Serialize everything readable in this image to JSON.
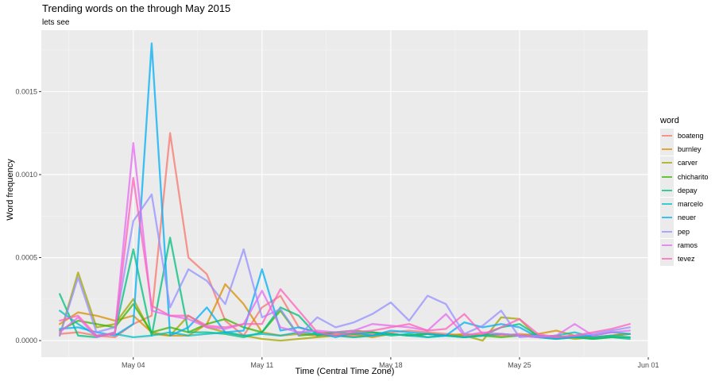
{
  "chart_data": {
    "type": "line",
    "title": "Trending words on the through May 2015",
    "subtitle": "lets see",
    "xlabel": "Time (Central Time Zone)",
    "ylabel": "Word frequency",
    "xlim": [
      "2015-04-29",
      "2015-06-01"
    ],
    "ylim": [
      -0.0001,
      0.00187
    ],
    "x_ticks": [
      {
        "date": "2015-05-04",
        "label": "May 04"
      },
      {
        "date": "2015-05-11",
        "label": "May 11"
      },
      {
        "date": "2015-05-18",
        "label": "May 18"
      },
      {
        "date": "2015-05-25",
        "label": "May 25"
      },
      {
        "date": "2015-06-01",
        "label": "Jun 01"
      }
    ],
    "y_ticks": [
      {
        "value": 0,
        "label": "0.0000"
      },
      {
        "value": 0.0005,
        "label": "0.0005"
      },
      {
        "value": 0.001,
        "label": "0.0010"
      },
      {
        "value": 0.0015,
        "label": "0.0015"
      }
    ],
    "grid": true,
    "legend": {
      "title": "word",
      "position": "right"
    },
    "x": [
      "2015-04-30",
      "2015-05-01",
      "2015-05-02",
      "2015-05-03",
      "2015-05-04",
      "2015-05-05",
      "2015-05-06",
      "2015-05-07",
      "2015-05-08",
      "2015-05-09",
      "2015-05-10",
      "2015-05-11",
      "2015-05-12",
      "2015-05-13",
      "2015-05-14",
      "2015-05-15",
      "2015-05-16",
      "2015-05-17",
      "2015-05-18",
      "2015-05-19",
      "2015-05-20",
      "2015-05-21",
      "2015-05-22",
      "2015-05-23",
      "2015-05-24",
      "2015-05-25",
      "2015-05-26",
      "2015-05-27",
      "2015-05-28",
      "2015-05-29",
      "2015-05-30",
      "2015-05-31"
    ],
    "series": [
      {
        "name": "boateng",
        "color": "#F8766D",
        "values": [
          4e-05,
          5e-05,
          3e-05,
          2e-05,
          0.0001,
          0.00015,
          0.00125,
          0.0005,
          0.0004,
          0.00012,
          3e-05,
          0.0002,
          0.00027,
          8e-05,
          5e-05,
          4e-05,
          3e-05,
          4e-05,
          5e-05,
          6e-05,
          5e-05,
          4e-05,
          3e-05,
          4e-05,
          3e-05,
          4e-05,
          3e-05,
          2e-05,
          3e-05,
          2e-05,
          3e-05,
          4e-05
        ]
      },
      {
        "name": "burnley",
        "color": "#D89000",
        "values": [
          0.0001,
          0.00017,
          0.00015,
          0.00012,
          0.00015,
          5e-05,
          3e-05,
          3e-05,
          0.0001,
          0.00034,
          0.00022,
          5e-05,
          3e-05,
          4e-05,
          3e-05,
          3e-05,
          4e-05,
          2e-05,
          4e-05,
          3e-05,
          4e-05,
          3e-05,
          4e-05,
          3e-05,
          4e-05,
          3e-05,
          4e-05,
          6e-05,
          3e-05,
          2e-05,
          3e-05,
          4e-05
        ]
      },
      {
        "name": "carver",
        "color": "#A3A500",
        "values": [
          3e-05,
          0.00041,
          8e-05,
          0.0001,
          0.00025,
          4e-05,
          3e-05,
          0.00015,
          8e-05,
          5e-05,
          3e-05,
          1e-05,
          0.0,
          1e-05,
          2e-05,
          3e-05,
          2e-05,
          3e-05,
          4e-05,
          3e-05,
          4e-05,
          3e-05,
          3e-05,
          0.0,
          0.00014,
          0.00013,
          2e-05,
          3e-05,
          1e-05,
          2e-05,
          3e-05,
          4e-05
        ]
      },
      {
        "name": "chicharito",
        "color": "#39B600",
        "values": [
          6e-05,
          0.00012,
          0.0001,
          8e-05,
          0.00022,
          5e-05,
          8e-05,
          5e-05,
          0.0001,
          0.00013,
          8e-05,
          5e-05,
          0.00018,
          3e-05,
          4e-05,
          5e-05,
          6e-05,
          5e-05,
          4e-05,
          3e-05,
          4e-05,
          3e-05,
          2e-05,
          3e-05,
          2e-05,
          3e-05,
          2e-05,
          1e-05,
          2e-05,
          1e-05,
          2e-05,
          2e-05
        ]
      },
      {
        "name": "depay",
        "color": "#00BF7D",
        "values": [
          0.00028,
          3e-05,
          2e-05,
          5e-05,
          0.00055,
          3e-05,
          0.00062,
          5e-05,
          5e-05,
          4e-05,
          2e-05,
          5e-05,
          0.0002,
          0.00015,
          3e-05,
          5e-05,
          4e-05,
          5e-05,
          3e-05,
          4e-05,
          2e-05,
          3e-05,
          2e-05,
          3e-05,
          8e-05,
          0.0001,
          3e-05,
          2e-05,
          2e-05,
          1e-05,
          2e-05,
          1e-05
        ]
      },
      {
        "name": "marcelo",
        "color": "#00BFC4",
        "values": [
          0.00018,
          0.0001,
          3e-05,
          4e-05,
          2e-05,
          3e-05,
          5e-05,
          3e-05,
          4e-05,
          5e-05,
          3e-05,
          4e-05,
          3e-05,
          5e-05,
          4e-05,
          3e-05,
          2e-05,
          3e-05,
          4e-05,
          3e-05,
          2e-05,
          3e-05,
          2e-05,
          3e-05,
          4e-05,
          3e-05,
          2e-05,
          3e-05,
          5e-05,
          2e-05,
          3e-05,
          2e-05
        ]
      },
      {
        "name": "neuer",
        "color": "#00B0F6",
        "values": [
          7e-05,
          8e-05,
          5e-05,
          3e-05,
          0.0001,
          0.00179,
          3e-05,
          8e-05,
          0.0002,
          5e-05,
          6e-05,
          0.00043,
          6e-05,
          8e-05,
          5e-05,
          2e-05,
          5e-05,
          3e-05,
          6e-05,
          5e-05,
          4e-05,
          3e-05,
          0.00011,
          8e-05,
          0.0001,
          8e-05,
          2e-05,
          1e-05,
          2e-05,
          3e-05,
          5e-05,
          4e-05
        ]
      },
      {
        "name": "pep",
        "color": "#9590FF",
        "values": [
          3e-05,
          0.00038,
          5e-05,
          8e-05,
          0.00072,
          0.00088,
          0.0002,
          0.00043,
          0.00036,
          0.00022,
          0.00055,
          0.00014,
          0.00019,
          3e-05,
          0.00014,
          8e-05,
          0.00011,
          0.00016,
          0.00023,
          0.00012,
          0.00027,
          0.00022,
          4e-05,
          9e-05,
          0.00018,
          2e-05,
          3e-05,
          2e-05,
          3e-05,
          4e-05,
          6e-05,
          8e-05
        ]
      },
      {
        "name": "ramos",
        "color": "#E76BF3",
        "values": [
          5e-05,
          0.00014,
          2e-05,
          5e-05,
          0.00119,
          0.00018,
          0.00015,
          0.00013,
          8e-05,
          7e-05,
          0.0001,
          0.0003,
          8e-05,
          5e-05,
          6e-05,
          5e-05,
          6e-05,
          0.0001,
          9e-05,
          8e-05,
          6e-05,
          0.00016,
          3e-05,
          5e-05,
          4e-05,
          3e-05,
          2e-05,
          3e-05,
          0.0001,
          3e-05,
          5e-05,
          6e-05
        ]
      },
      {
        "name": "tevez",
        "color": "#FF62BC",
        "values": [
          0.00012,
          0.00015,
          3e-05,
          4e-05,
          0.00098,
          0.00021,
          0.00015,
          0.00015,
          9e-05,
          8e-05,
          0.0001,
          0.0001,
          0.00031,
          0.00018,
          5e-05,
          3e-05,
          5e-05,
          6e-05,
          8e-05,
          0.0001,
          6e-05,
          7e-05,
          0.00016,
          4e-05,
          8e-05,
          0.00013,
          4e-05,
          2e-05,
          3e-05,
          5e-05,
          7e-05,
          0.0001
        ]
      }
    ]
  }
}
